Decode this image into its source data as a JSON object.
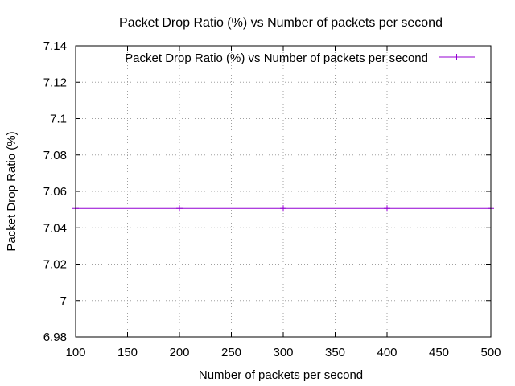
{
  "chart_data": {
    "type": "line",
    "title": "Packet Drop Ratio (%) vs Number of packets per second",
    "xlabel": "Number of packets per second",
    "ylabel": "Packet Drop Ratio (%)",
    "xlim": [
      100,
      500
    ],
    "ylim": [
      6.98,
      7.14
    ],
    "xticks": [
      "100",
      "150",
      "200",
      "250",
      "300",
      "350",
      "400",
      "450",
      "500"
    ],
    "yticks": [
      "6.98",
      "7",
      "7.02",
      "7.04",
      "7.06",
      "7.08",
      "7.1",
      "7.12",
      "7.14"
    ],
    "grid": true,
    "legend_position": "top-right",
    "series": [
      {
        "name": "Packet Drop Ratio (%) vs Number of packets per second",
        "color": "#9400d3",
        "marker": "plus",
        "x": [
          100,
          200,
          300,
          400,
          500
        ],
        "y": [
          7.0506,
          7.0506,
          7.0506,
          7.0506,
          7.0506
        ]
      }
    ]
  }
}
